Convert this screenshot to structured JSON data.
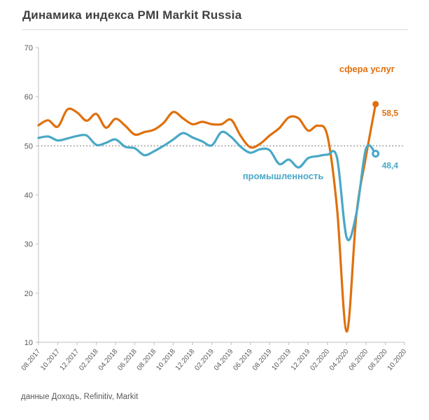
{
  "title": "Динамика индекса PMI Markit Russia",
  "source_note": "данные Доходъ, Refinitiv,  Markit",
  "colors": {
    "services": "#df700d",
    "manufacturing": "#49a8c6",
    "reference_line": "#a6a6a6",
    "axis": "#bfbfbf",
    "tick_label": "#595959",
    "title": "#404040",
    "divider": "#d9d9d9",
    "background": "#ffffff"
  },
  "chart_data": {
    "type": "line",
    "title": "Динамика индекса PMI Markit Russia",
    "xlabel": "",
    "ylabel": "",
    "ylim": [
      10,
      70
    ],
    "yticks": [
      10,
      20,
      30,
      40,
      50,
      60,
      70
    ],
    "reference_line": 50,
    "grid": "reference-line-only",
    "legend_position": "inline-labels",
    "x": [
      "08.2017",
      "09.2017",
      "10.2017",
      "11.2017",
      "12.2017",
      "01.2018",
      "02.2018",
      "03.2018",
      "04.2018",
      "05.2018",
      "06.2018",
      "07.2018",
      "08.2018",
      "09.2018",
      "10.2018",
      "11.2018",
      "12.2018",
      "01.2019",
      "02.2019",
      "03.2019",
      "04.2019",
      "05.2019",
      "06.2019",
      "07.2019",
      "08.2019",
      "09.2019",
      "10.2019",
      "11.2019",
      "12.2019",
      "01.2020",
      "02.2020",
      "03.2020",
      "04.2020",
      "05.2020",
      "06.2020",
      "07.2020"
    ],
    "x_ticks": [
      "08.2017",
      "10.2017",
      "12.2017",
      "02.2018",
      "04.2018",
      "06.2018",
      "08.2018",
      "10.2018",
      "12.2018",
      "02.2019",
      "04.2019",
      "06.2019",
      "08.2019",
      "10.2019",
      "12.2019",
      "02.2020",
      "04.2020",
      "06.2020",
      "08.2020",
      "10.2020"
    ],
    "series": [
      {
        "name": "сфера услуг",
        "color": "#df700d",
        "end_label": "58,5",
        "last_value": 58.5,
        "values": [
          54.2,
          55.2,
          53.9,
          57.4,
          56.8,
          55.1,
          56.5,
          53.7,
          55.5,
          54.1,
          52.3,
          52.8,
          53.3,
          54.7,
          56.9,
          55.6,
          54.4,
          54.9,
          54.4,
          54.4,
          55.3,
          52.0,
          49.7,
          50.4,
          52.1,
          53.6,
          55.8,
          55.6,
          53.1,
          54.1,
          52.0,
          37.1,
          12.2,
          35.9,
          47.8,
          58.5
        ]
      },
      {
        "name": "промышленность",
        "color": "#49a8c6",
        "end_label": "48,4",
        "last_value": 48.4,
        "values": [
          51.6,
          51.9,
          51.1,
          51.5,
          52.0,
          52.1,
          50.2,
          50.6,
          51.3,
          49.8,
          49.5,
          48.1,
          48.9,
          50.0,
          51.3,
          52.6,
          51.7,
          50.9,
          50.1,
          52.8,
          51.8,
          49.8,
          48.6,
          49.3,
          49.1,
          46.3,
          47.2,
          45.6,
          47.5,
          47.9,
          48.2,
          47.5,
          31.3,
          36.2,
          49.4,
          48.4
        ]
      }
    ]
  }
}
